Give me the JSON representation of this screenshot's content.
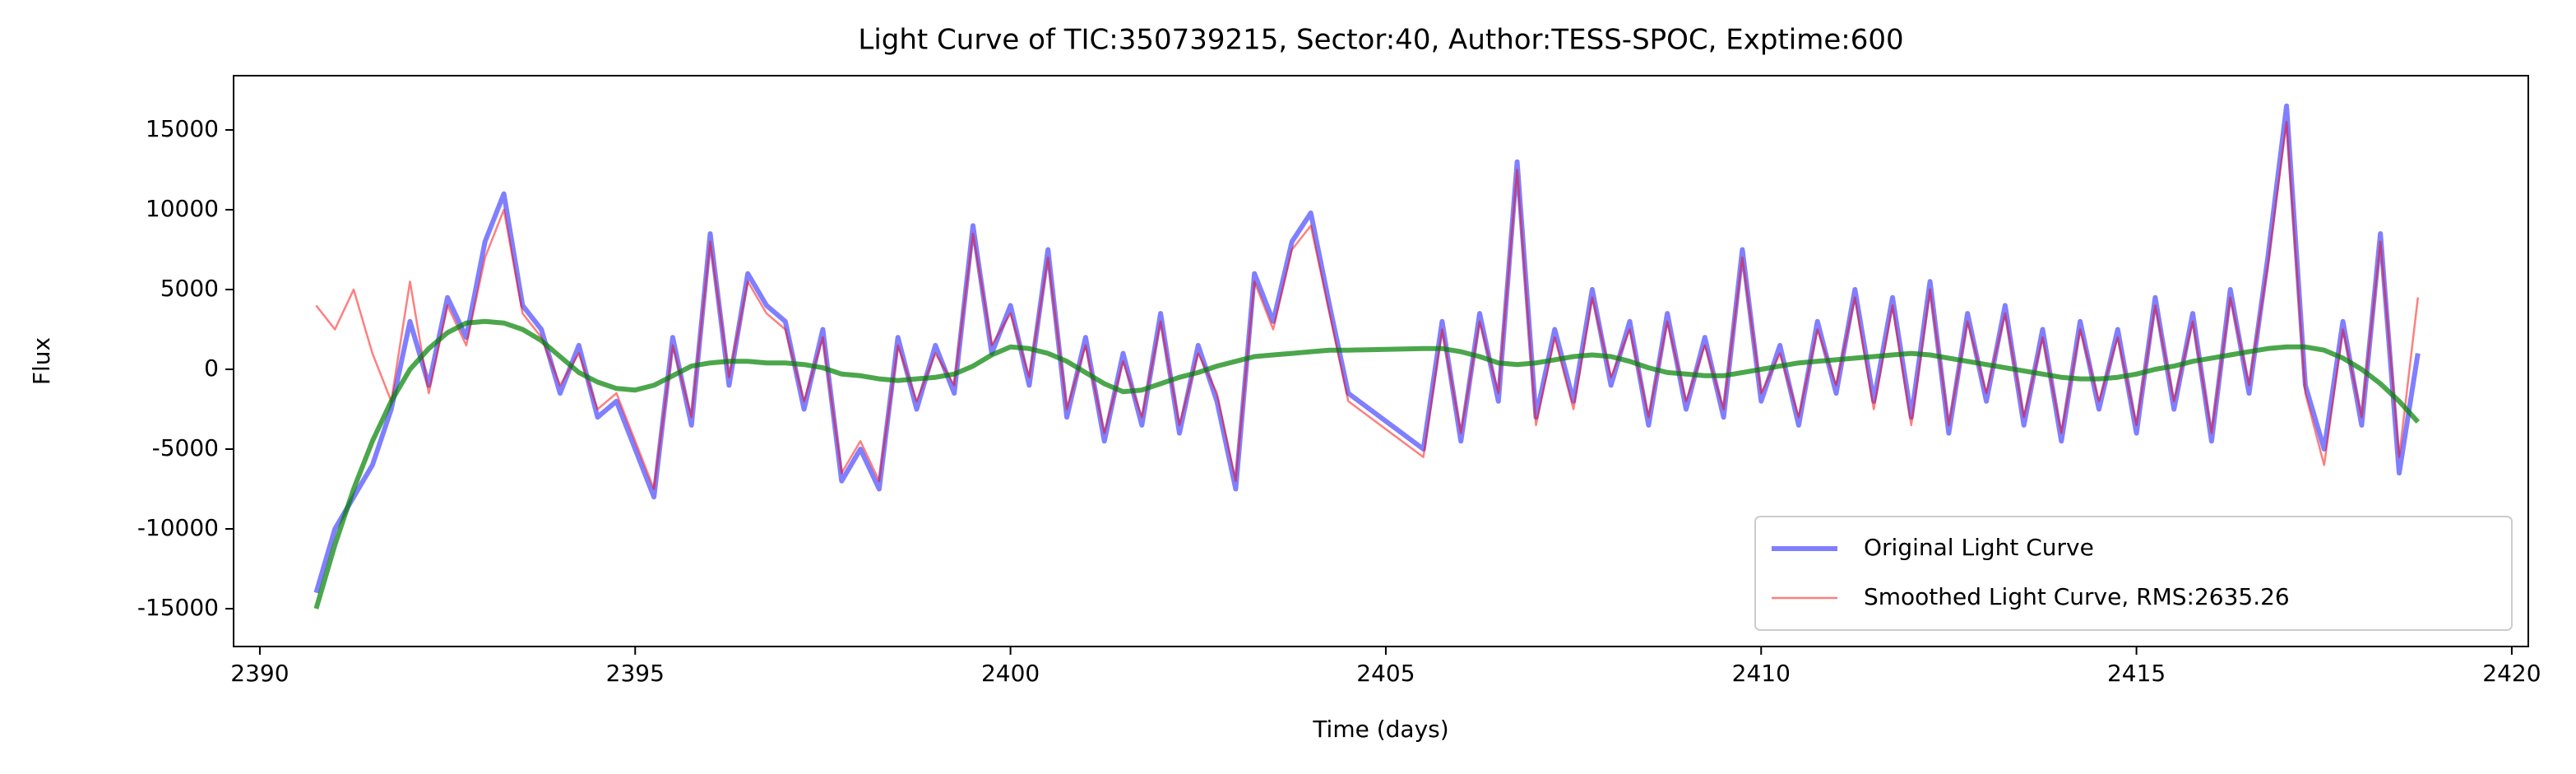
{
  "chart_data": {
    "type": "line",
    "title": "Light Curve of TIC:350739215, Sector:40, Author:TESS-SPOC, Exptime:600",
    "x_label": "Time (days)",
    "y_label": "Flux",
    "x": [
      2390.75,
      2391.0,
      2391.25,
      2391.5,
      2391.75,
      2392.0,
      2392.25,
      2392.5,
      2392.75,
      2393.0,
      2393.25,
      2393.5,
      2393.75,
      2394.0,
      2394.25,
      2394.5,
      2394.75,
      2395.0,
      2395.25,
      2395.5,
      2395.75,
      2396.0,
      2396.25,
      2396.5,
      2396.75,
      2397.0,
      2397.25,
      2397.5,
      2397.75,
      2398.0,
      2398.25,
      2398.5,
      2398.75,
      2399.0,
      2399.25,
      2399.5,
      2399.75,
      2400.0,
      2400.25,
      2400.5,
      2400.75,
      2401.0,
      2401.25,
      2401.5,
      2401.75,
      2402.0,
      2402.25,
      2402.5,
      2402.75,
      2403.0,
      2403.25,
      2403.5,
      2403.75,
      2404.0,
      2404.25,
      2404.5,
      2405.5,
      2405.75,
      2406.0,
      2406.25,
      2406.5,
      2406.75,
      2407.0,
      2407.25,
      2407.5,
      2407.75,
      2408.0,
      2408.25,
      2408.5,
      2408.75,
      2409.0,
      2409.25,
      2409.5,
      2409.75,
      2410.0,
      2410.25,
      2410.5,
      2410.75,
      2411.0,
      2411.25,
      2411.5,
      2411.75,
      2412.0,
      2412.25,
      2412.5,
      2412.75,
      2413.0,
      2413.25,
      2413.5,
      2413.75,
      2414.0,
      2414.25,
      2414.5,
      2414.75,
      2415.0,
      2415.25,
      2415.5,
      2415.75,
      2416.0,
      2416.25,
      2416.5,
      2416.75,
      2417.0,
      2417.25,
      2417.5,
      2417.75,
      2418.0,
      2418.25,
      2418.5,
      2418.75
    ],
    "series": [
      {
        "name": "Original Light Curve",
        "color": "#0000ff",
        "values": [
          -14000,
          -10000,
          -8000,
          -6000,
          -2500,
          3000,
          -1000,
          4500,
          2000,
          8000,
          11000,
          4000,
          2500,
          -1500,
          1500,
          -3000,
          -2000,
          -5000,
          -8000,
          2000,
          -3500,
          8500,
          -1000,
          6000,
          4000,
          3000,
          -2500,
          2500,
          -7000,
          -5000,
          -7500,
          2000,
          -2500,
          1500,
          -1500,
          9000,
          1000,
          4000,
          -1000,
          7500,
          -3000,
          2000,
          -4500,
          1000,
          -3500,
          3500,
          -4000,
          1500,
          -2000,
          -7500,
          6000,
          3000,
          8000,
          9800,
          4000,
          -1500,
          -5000,
          3000,
          -4500,
          3500,
          -2000,
          13000,
          -3000,
          2500,
          -2000,
          5000,
          -1000,
          3000,
          -3500,
          3500,
          -2500,
          2000,
          -3000,
          7500,
          -2000,
          1500,
          -3500,
          3000,
          -1500,
          5000,
          -2000,
          4500,
          -3000,
          5500,
          -4000,
          3500,
          -2000,
          4000,
          -3500,
          2500,
          -4500,
          3000,
          -2500,
          2500,
          -4000,
          4500,
          -2500,
          3500,
          -4500,
          5000,
          -1500,
          7000,
          16500,
          -1000,
          -5000,
          3000,
          -3500,
          8500,
          -6500,
          1000
        ]
      },
      {
        "name": "Smoothed Light Curve, RMS:2635.26",
        "color": "#ff0000",
        "values": [
          4000,
          2500,
          5000,
          1000,
          -2000,
          5500,
          -1500,
          4000,
          1500,
          7000,
          10000,
          3500,
          2000,
          -1000,
          1000,
          -2500,
          -1500,
          -4500,
          -7500,
          1500,
          -3000,
          8000,
          -500,
          5500,
          3500,
          2500,
          -2000,
          2000,
          -6500,
          -4500,
          -7000,
          1500,
          -2000,
          1000,
          -1000,
          8500,
          1500,
          3500,
          -500,
          7000,
          -2500,
          1500,
          -4000,
          500,
          -3000,
          3000,
          -3500,
          1000,
          -1500,
          -7000,
          5500,
          2500,
          7500,
          9000,
          3500,
          -2000,
          -5500,
          2500,
          -4000,
          3000,
          -1500,
          12500,
          -3500,
          2000,
          -2500,
          4500,
          -500,
          2500,
          -3000,
          3000,
          -2000,
          1500,
          -2500,
          7000,
          -1500,
          1000,
          -3000,
          2500,
          -1000,
          4500,
          -2500,
          4000,
          -3500,
          5000,
          -3500,
          3000,
          -1500,
          3500,
          -3000,
          2000,
          -4000,
          2500,
          -2000,
          2000,
          -3500,
          4000,
          -2000,
          3000,
          -4000,
          4500,
          -1000,
          6500,
          15500,
          -1500,
          -6000,
          2500,
          -3000,
          8000,
          -5500,
          4500
        ]
      },
      {
        "color": "#008000",
        "values": [
          -15000,
          -11000,
          -7500,
          -4500,
          -2000,
          0,
          1300,
          2300,
          2900,
          3000,
          2900,
          2500,
          1800,
          800,
          -200,
          -800,
          -1200,
          -1300,
          -1000,
          -400,
          200,
          400,
          500,
          500,
          400,
          400,
          300,
          100,
          -300,
          -400,
          -600,
          -700,
          -600,
          -500,
          -300,
          200,
          900,
          1400,
          1300,
          1000,
          500,
          -200,
          -900,
          -1400,
          -1300,
          -900,
          -500,
          -200,
          200,
          500,
          800,
          900,
          1000,
          1100,
          1200,
          1200,
          1300,
          1300,
          1100,
          800,
          400,
          300,
          400,
          600,
          800,
          900,
          800,
          500,
          100,
          -200,
          -300,
          -400,
          -400,
          -200,
          0,
          200,
          400,
          500,
          600,
          700,
          800,
          900,
          1000,
          900,
          700,
          500,
          300,
          100,
          -100,
          -300,
          -500,
          -600,
          -600,
          -500,
          -300,
          0,
          200,
          500,
          700,
          900,
          1100,
          1300,
          1400,
          1400,
          1200,
          700,
          0,
          -900,
          -2000,
          -3300
        ]
      }
    ],
    "xlim": [
      2389.65,
      2420.22
    ],
    "xticks": [
      2390,
      2395,
      2400,
      2405,
      2410,
      2415,
      2420
    ],
    "ylim": [
      -17370,
      18400
    ],
    "yticks": [
      -15000,
      -10000,
      -5000,
      0,
      5000,
      10000,
      15000
    ],
    "grid": false,
    "legend": "lower right"
  }
}
